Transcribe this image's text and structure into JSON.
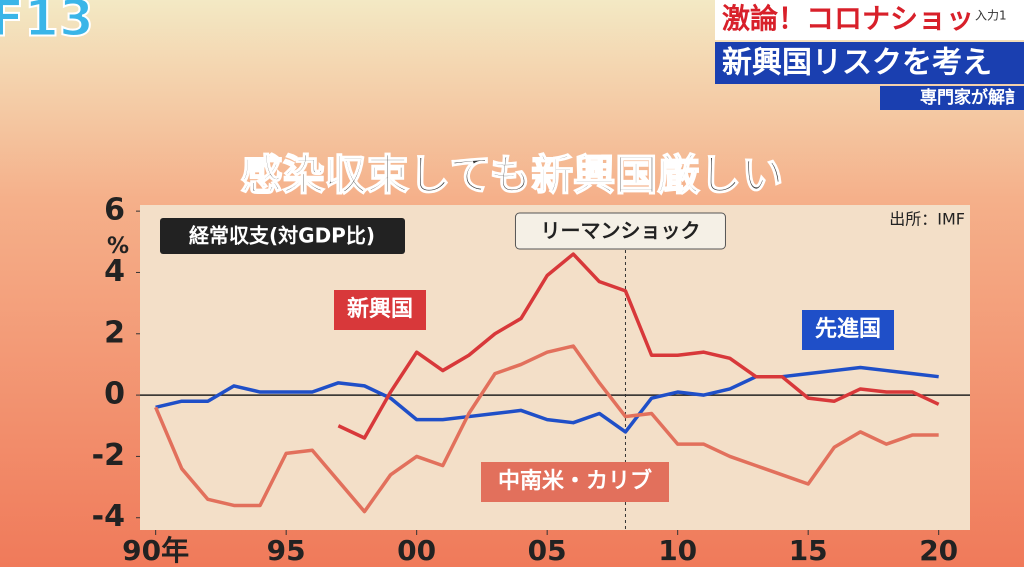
{
  "screen": {
    "channel": "F13",
    "input": "入力1",
    "banner_top": "激論！コロナショッ",
    "banner_main": "新興国リスクを考え",
    "banner_sub": "専門家が解訁"
  },
  "chart_data": {
    "type": "line",
    "title": "感染収束しても新興国厳しい",
    "y_label": "経常収支(対GDP比)",
    "y_unit": "%",
    "source": "出所：IMF",
    "annotation": "リーマンショック",
    "annotation_x": 2008,
    "x": [
      1990,
      1991,
      1992,
      1993,
      1994,
      1995,
      1996,
      1997,
      1998,
      1999,
      2000,
      2001,
      2002,
      2003,
      2004,
      2005,
      2006,
      2007,
      2008,
      2009,
      2010,
      2011,
      2012,
      2013,
      2014,
      2015,
      2016,
      2017,
      2018,
      2019,
      2020
    ],
    "series": [
      {
        "name": "先進国",
        "color": "#1f4fc8",
        "values": [
          -0.4,
          -0.2,
          -0.2,
          0.3,
          0.1,
          0.1,
          0.1,
          0.4,
          0.3,
          -0.1,
          -0.8,
          -0.8,
          -0.7,
          -0.6,
          -0.5,
          -0.8,
          -0.9,
          -0.6,
          -1.2,
          -0.1,
          0.1,
          0.0,
          0.2,
          0.6,
          0.6,
          0.7,
          0.8,
          0.9,
          0.8,
          0.7,
          0.6
        ]
      },
      {
        "name": "新興国",
        "color": "#d8383a",
        "values": [
          null,
          null,
          null,
          null,
          null,
          null,
          null,
          -1.0,
          -1.4,
          0.1,
          1.4,
          0.8,
          1.3,
          2.0,
          2.5,
          3.9,
          4.6,
          3.7,
          3.4,
          1.3,
          1.3,
          1.4,
          1.2,
          0.6,
          0.6,
          -0.1,
          -0.2,
          0.2,
          0.1,
          0.1,
          -0.3
        ]
      },
      {
        "name": "中南米・カリブ",
        "color": "#e2705c",
        "values": [
          -0.4,
          -2.4,
          -3.4,
          -3.6,
          -3.6,
          -1.9,
          -1.8,
          -2.8,
          -3.8,
          -2.6,
          -2.0,
          -2.3,
          -0.6,
          0.7,
          1.0,
          1.4,
          1.6,
          0.4,
          -0.7,
          -0.6,
          -1.6,
          -1.6,
          -2.0,
          -2.3,
          -2.6,
          -2.9,
          -1.7,
          -1.2,
          -1.6,
          -1.3,
          -1.3
        ]
      }
    ],
    "xlim": [
      1989.4,
      2021.2
    ],
    "xticks": [
      {
        "value": 1990,
        "label": "90年"
      },
      {
        "value": 1995,
        "label": "95"
      },
      {
        "value": 2000,
        "label": "00"
      },
      {
        "value": 2005,
        "label": "05"
      },
      {
        "value": 2010,
        "label": "10"
      },
      {
        "value": 2015,
        "label": "15"
      },
      {
        "value": 2020,
        "label": "20"
      }
    ],
    "ylim": [
      -4.4,
      6.2
    ],
    "yticks": [
      -4,
      -2,
      0,
      2,
      4,
      6
    ]
  }
}
